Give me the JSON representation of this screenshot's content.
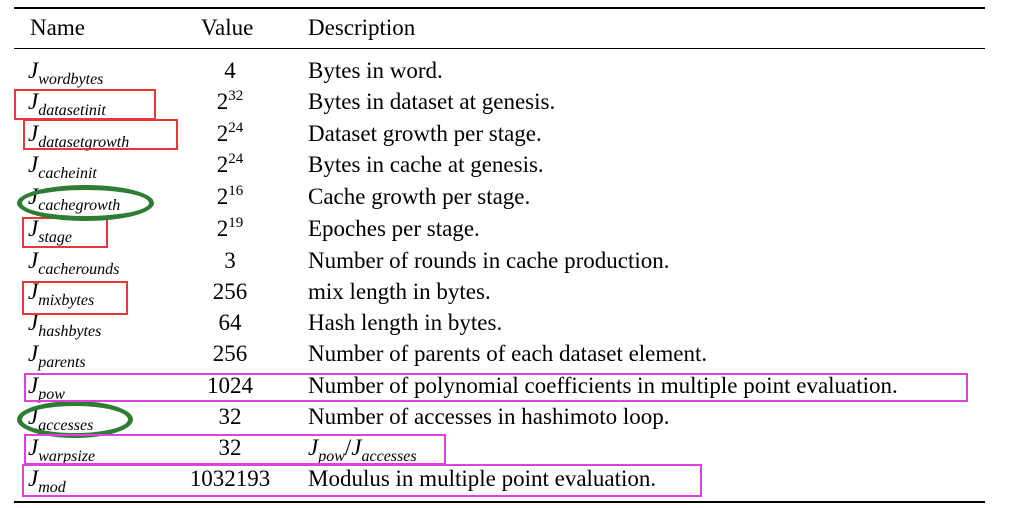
{
  "table": {
    "headers": {
      "name": "Name",
      "value": "Value",
      "description": "Description"
    },
    "rows": [
      {
        "sym": "J",
        "sub": "wordbytes",
        "base": "4",
        "exp": "",
        "desc": "Bytes in word."
      },
      {
        "sym": "J",
        "sub": "datasetinit",
        "base": "2",
        "exp": "32",
        "desc": "Bytes in dataset at genesis."
      },
      {
        "sym": "J",
        "sub": "datasetgrowth",
        "base": "2",
        "exp": "24",
        "desc": "Dataset growth per stage."
      },
      {
        "sym": "J",
        "sub": "cacheinit",
        "base": "2",
        "exp": "24",
        "desc": "Bytes in cache at genesis."
      },
      {
        "sym": "J",
        "sub": "cachegrowth",
        "base": "2",
        "exp": "16",
        "desc": "Cache growth per stage."
      },
      {
        "sym": "J",
        "sub": "stage",
        "base": "2",
        "exp": "19",
        "desc": "Epoches per stage."
      },
      {
        "sym": "J",
        "sub": "cacherounds",
        "base": "3",
        "exp": "",
        "desc": "Number of rounds in cache production."
      },
      {
        "sym": "J",
        "sub": "mixbytes",
        "base": "256",
        "exp": "",
        "desc": "mix length in bytes."
      },
      {
        "sym": "J",
        "sub": "hashbytes",
        "base": "64",
        "exp": "",
        "desc": "Hash length in bytes."
      },
      {
        "sym": "J",
        "sub": "parents",
        "base": "256",
        "exp": "",
        "desc": "Number of parents of each dataset element."
      },
      {
        "sym": "J",
        "sub": "pow",
        "base": "1024",
        "exp": "",
        "desc": "Number of polynomial coefficients in multiple point evaluation."
      },
      {
        "sym": "J",
        "sub": "accesses",
        "base": "32",
        "exp": "",
        "desc": "Number of accesses in hashimoto loop."
      },
      {
        "sym": "J",
        "sub": "warpsize",
        "base": "32",
        "exp": "",
        "desc": ""
      },
      {
        "sym": "J",
        "sub": "mod",
        "base": "1032193",
        "exp": "",
        "desc": "Modulus in multiple point evaluation."
      }
    ],
    "warpsize_desc": {
      "num_sym": "J",
      "num_sub": "pow",
      "slash": "/",
      "den_sym": "J",
      "den_sub": "accesses"
    }
  },
  "annotation_colors": {
    "red": "#e53935",
    "magenta": "#e040e0",
    "green": "#2e7d32"
  }
}
